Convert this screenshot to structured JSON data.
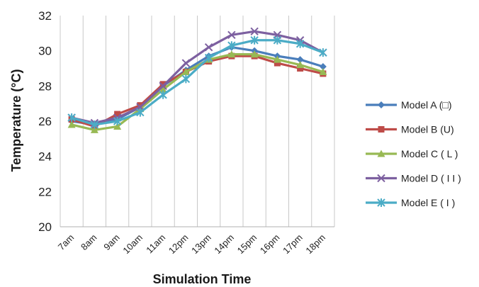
{
  "chart_data": {
    "type": "line",
    "title": "",
    "xlabel": "Simulation Time",
    "ylabel": "Temperature (°C)",
    "ylim": [
      20,
      32
    ],
    "yticks": [
      "20",
      "22",
      "24",
      "26",
      "28",
      "30",
      "32"
    ],
    "grid": "vertical",
    "legend_position": "right",
    "categories": [
      "7am",
      "8am",
      "9am",
      "10am",
      "11am",
      "12pm",
      "13pm",
      "14pm",
      "15pm",
      "16pm",
      "17pm",
      "18pm"
    ],
    "series": [
      {
        "name": "Model A (□)",
        "color": "#4a7ebb",
        "marker": "diamond",
        "values": [
          26.0,
          25.8,
          26.1,
          26.8,
          28.0,
          28.9,
          29.7,
          30.2,
          30.0,
          29.7,
          29.5,
          29.1
        ]
      },
      {
        "name": "Model B (U)",
        "color": "#be4b48",
        "marker": "square",
        "values": [
          26.1,
          25.7,
          26.4,
          26.9,
          28.1,
          28.8,
          29.4,
          29.7,
          29.7,
          29.3,
          29.0,
          28.7
        ]
      },
      {
        "name": "Model C ( L )",
        "color": "#98b954",
        "marker": "triangle",
        "values": [
          25.8,
          25.5,
          25.7,
          26.7,
          27.8,
          28.8,
          29.5,
          29.8,
          29.8,
          29.5,
          29.2,
          28.8
        ]
      },
      {
        "name": "Model D ( I I )",
        "color": "#7d60a0",
        "marker": "x",
        "values": [
          26.2,
          25.9,
          26.2,
          26.8,
          28.0,
          29.3,
          30.2,
          30.9,
          31.1,
          30.9,
          30.6,
          29.9
        ]
      },
      {
        "name": "Model E ( I )",
        "color": "#4bacc6",
        "marker": "star",
        "values": [
          26.2,
          25.8,
          26.0,
          26.5,
          27.5,
          28.4,
          29.6,
          30.3,
          30.6,
          30.6,
          30.4,
          29.9
        ]
      }
    ]
  }
}
